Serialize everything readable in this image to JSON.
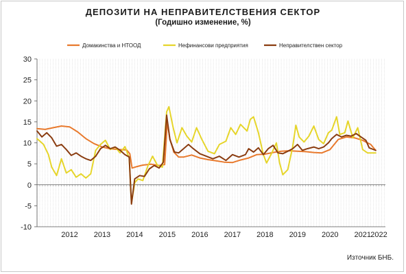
{
  "title": "ДЕПОЗИТИ НА НЕПРАВИТЕЛСТВЕНИЯ СЕКТОР",
  "subtitle": "(Годишно изменение, %)",
  "source": "Източник БНБ.",
  "chart_data": {
    "type": "line",
    "title": "ДЕПОЗИТИ НА НЕПРАВИТЕЛСТВЕНИЯ СЕКТОР",
    "subtitle": "(Годишно изменение, %)",
    "xlabel": "",
    "ylabel": "",
    "ylim": [
      -10,
      30
    ],
    "yticks": [
      -10,
      -5,
      0,
      5,
      10,
      15,
      20,
      25,
      30
    ],
    "xlim": [
      2011.5,
      2022.2
    ],
    "xtick_labels": [
      "2012",
      "2013",
      "2014",
      "2015",
      "2016",
      "2017",
      "2018",
      "2019",
      "2020",
      "2021",
      "2022"
    ],
    "grid": "vertical monthly dotted lines",
    "legend": "top",
    "series": [
      {
        "name": "Домакинства и НТООД",
        "color": "#e8792c",
        "points": [
          [
            2011.5,
            13.4
          ],
          [
            2011.75,
            13.2
          ],
          [
            2012.0,
            13.6
          ],
          [
            2012.25,
            14.0
          ],
          [
            2012.5,
            13.8
          ],
          [
            2012.75,
            12.6
          ],
          [
            2013.0,
            11.0
          ],
          [
            2013.25,
            9.8
          ],
          [
            2013.5,
            9.0
          ],
          [
            2013.75,
            8.6
          ],
          [
            2014.0,
            8.4
          ],
          [
            2014.25,
            8.3
          ],
          [
            2014.35,
            7.4
          ],
          [
            2014.42,
            4.0
          ],
          [
            2014.55,
            4.3
          ],
          [
            2014.75,
            4.7
          ],
          [
            2015.0,
            4.9
          ],
          [
            2015.25,
            4.6
          ],
          [
            2015.42,
            4.8
          ],
          [
            2015.5,
            15.0
          ],
          [
            2015.58,
            11.0
          ],
          [
            2015.7,
            7.8
          ],
          [
            2015.85,
            6.6
          ],
          [
            2016.0,
            6.6
          ],
          [
            2016.25,
            7.1
          ],
          [
            2016.5,
            6.4
          ],
          [
            2016.75,
            6.0
          ],
          [
            2017.0,
            5.7
          ],
          [
            2017.25,
            5.4
          ],
          [
            2017.5,
            5.3
          ],
          [
            2017.75,
            5.9
          ],
          [
            2018.0,
            6.4
          ],
          [
            2018.25,
            7.2
          ],
          [
            2018.5,
            7.3
          ],
          [
            2018.75,
            7.7
          ],
          [
            2019.0,
            8.0
          ],
          [
            2019.25,
            8.1
          ],
          [
            2019.5,
            8.0
          ],
          [
            2019.75,
            7.9
          ],
          [
            2020.0,
            7.7
          ],
          [
            2020.25,
            7.6
          ],
          [
            2020.5,
            8.4
          ],
          [
            2020.75,
            10.8
          ],
          [
            2021.0,
            11.4
          ],
          [
            2021.25,
            11.2
          ],
          [
            2021.5,
            10.6
          ],
          [
            2021.75,
            9.6
          ],
          [
            2021.9,
            8.2
          ]
        ]
      },
      {
        "name": "Нефинансови предприятия",
        "color": "#e6d52a",
        "points": [
          [
            2011.5,
            11.0
          ],
          [
            2011.7,
            9.6
          ],
          [
            2011.85,
            7.2
          ],
          [
            2011.95,
            4.2
          ],
          [
            2012.1,
            2.2
          ],
          [
            2012.25,
            6.2
          ],
          [
            2012.4,
            2.8
          ],
          [
            2012.55,
            3.6
          ],
          [
            2012.7,
            1.8
          ],
          [
            2012.85,
            2.6
          ],
          [
            2013.0,
            1.6
          ],
          [
            2013.15,
            2.6
          ],
          [
            2013.3,
            8.2
          ],
          [
            2013.45,
            9.6
          ],
          [
            2013.6,
            10.6
          ],
          [
            2013.75,
            8.4
          ],
          [
            2013.9,
            9.0
          ],
          [
            2014.05,
            7.6
          ],
          [
            2014.2,
            9.1
          ],
          [
            2014.33,
            6.4
          ],
          [
            2014.4,
            -4.4
          ],
          [
            2014.5,
            0.5
          ],
          [
            2014.6,
            1.4
          ],
          [
            2014.75,
            1.0
          ],
          [
            2014.9,
            4.4
          ],
          [
            2015.05,
            6.8
          ],
          [
            2015.2,
            4.6
          ],
          [
            2015.35,
            4.2
          ],
          [
            2015.48,
            17.4
          ],
          [
            2015.55,
            18.6
          ],
          [
            2015.68,
            13.6
          ],
          [
            2015.8,
            10.0
          ],
          [
            2015.95,
            13.6
          ],
          [
            2016.1,
            11.6
          ],
          [
            2016.25,
            10.2
          ],
          [
            2016.4,
            13.6
          ],
          [
            2016.55,
            11.0
          ],
          [
            2016.75,
            8.0
          ],
          [
            2016.95,
            7.4
          ],
          [
            2017.1,
            9.6
          ],
          [
            2017.3,
            10.4
          ],
          [
            2017.45,
            13.6
          ],
          [
            2017.6,
            12.0
          ],
          [
            2017.75,
            14.4
          ],
          [
            2017.95,
            12.8
          ],
          [
            2018.05,
            15.6
          ],
          [
            2018.15,
            16.2
          ],
          [
            2018.3,
            12.4
          ],
          [
            2018.45,
            7.2
          ],
          [
            2018.55,
            5.2
          ],
          [
            2018.7,
            7.4
          ],
          [
            2018.85,
            10.0
          ],
          [
            2018.95,
            5.2
          ],
          [
            2019.05,
            2.4
          ],
          [
            2019.2,
            3.6
          ],
          [
            2019.35,
            9.0
          ],
          [
            2019.45,
            14.2
          ],
          [
            2019.55,
            11.4
          ],
          [
            2019.7,
            10.2
          ],
          [
            2019.85,
            11.6
          ],
          [
            2020.0,
            14.0
          ],
          [
            2020.15,
            10.8
          ],
          [
            2020.3,
            9.8
          ],
          [
            2020.45,
            12.4
          ],
          [
            2020.55,
            13.0
          ],
          [
            2020.7,
            16.2
          ],
          [
            2020.8,
            12.0
          ],
          [
            2020.95,
            12.4
          ],
          [
            2021.05,
            15.2
          ],
          [
            2021.2,
            11.2
          ],
          [
            2021.35,
            13.6
          ],
          [
            2021.5,
            8.4
          ],
          [
            2021.65,
            7.6
          ],
          [
            2021.9,
            7.6
          ]
        ]
      },
      {
        "name": "Неправителствен сектор",
        "color": "#8a3c10",
        "points": [
          [
            2011.5,
            12.8
          ],
          [
            2011.65,
            11.4
          ],
          [
            2011.8,
            12.4
          ],
          [
            2011.95,
            11.2
          ],
          [
            2012.1,
            9.2
          ],
          [
            2012.25,
            9.6
          ],
          [
            2012.4,
            8.4
          ],
          [
            2012.55,
            7.0
          ],
          [
            2012.7,
            7.6
          ],
          [
            2012.85,
            6.8
          ],
          [
            2013.0,
            6.2
          ],
          [
            2013.15,
            5.8
          ],
          [
            2013.3,
            6.8
          ],
          [
            2013.45,
            8.6
          ],
          [
            2013.6,
            9.4
          ],
          [
            2013.75,
            8.6
          ],
          [
            2013.9,
            9.0
          ],
          [
            2014.05,
            8.2
          ],
          [
            2014.2,
            7.2
          ],
          [
            2014.33,
            6.6
          ],
          [
            2014.4,
            -4.6
          ],
          [
            2014.5,
            1.4
          ],
          [
            2014.65,
            2.2
          ],
          [
            2014.8,
            2.0
          ],
          [
            2014.95,
            3.8
          ],
          [
            2015.1,
            4.6
          ],
          [
            2015.25,
            4.0
          ],
          [
            2015.38,
            5.4
          ],
          [
            2015.48,
            16.6
          ],
          [
            2015.58,
            10.8
          ],
          [
            2015.72,
            7.8
          ],
          [
            2015.85,
            7.6
          ],
          [
            2016.0,
            8.6
          ],
          [
            2016.15,
            9.6
          ],
          [
            2016.3,
            8.6
          ],
          [
            2016.5,
            7.4
          ],
          [
            2016.7,
            6.8
          ],
          [
            2016.9,
            6.2
          ],
          [
            2017.1,
            6.8
          ],
          [
            2017.3,
            5.8
          ],
          [
            2017.5,
            7.2
          ],
          [
            2017.7,
            6.6
          ],
          [
            2017.9,
            7.2
          ],
          [
            2018.0,
            8.6
          ],
          [
            2018.15,
            7.8
          ],
          [
            2018.3,
            8.8
          ],
          [
            2018.45,
            7.2
          ],
          [
            2018.6,
            8.6
          ],
          [
            2018.75,
            9.4
          ],
          [
            2018.9,
            7.6
          ],
          [
            2019.05,
            7.4
          ],
          [
            2019.2,
            8.0
          ],
          [
            2019.35,
            8.6
          ],
          [
            2019.5,
            9.6
          ],
          [
            2019.65,
            8.2
          ],
          [
            2019.8,
            8.6
          ],
          [
            2020.0,
            9.0
          ],
          [
            2020.15,
            8.6
          ],
          [
            2020.3,
            9.0
          ],
          [
            2020.45,
            10.0
          ],
          [
            2020.55,
            11.0
          ],
          [
            2020.7,
            12.0
          ],
          [
            2020.85,
            11.4
          ],
          [
            2021.0,
            11.8
          ],
          [
            2021.15,
            11.6
          ],
          [
            2021.3,
            12.2
          ],
          [
            2021.45,
            11.4
          ],
          [
            2021.6,
            10.6
          ],
          [
            2021.7,
            8.8
          ],
          [
            2021.9,
            8.2
          ]
        ]
      }
    ]
  }
}
